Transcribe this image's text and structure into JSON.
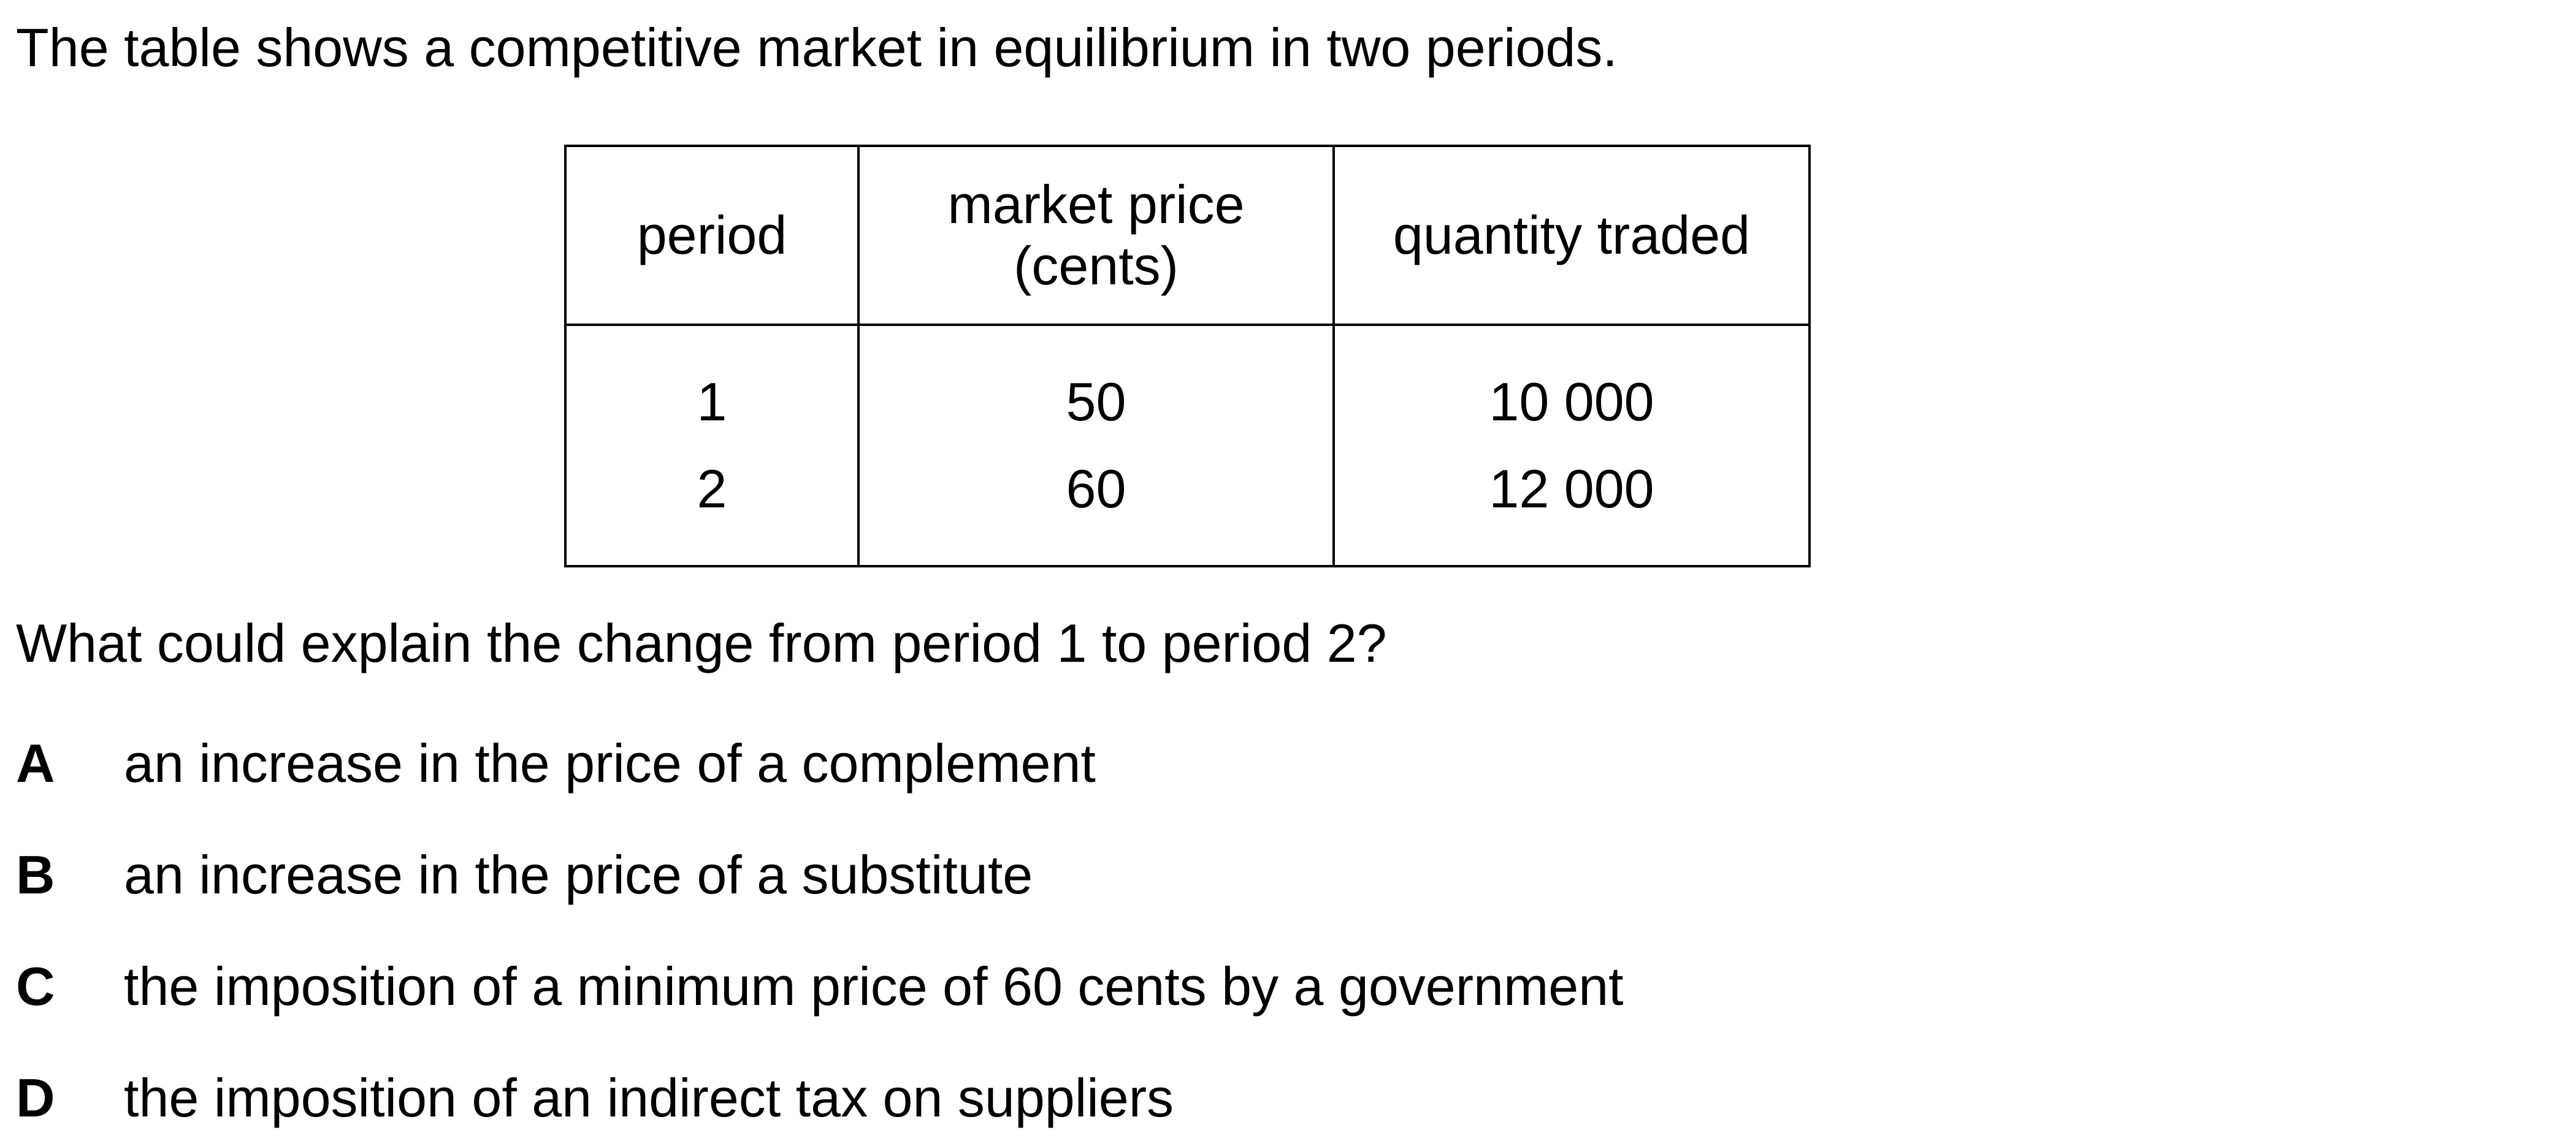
{
  "intro": "The table shows a competitive market in equilibrium in two periods.",
  "table": {
    "headers": {
      "period": "period",
      "price_line1": "market price",
      "price_line2": "(cents)",
      "quantity": "quantity traded"
    },
    "rows": [
      {
        "period": "1",
        "price": "50",
        "quantity": "10 000"
      },
      {
        "period": "2",
        "price": "60",
        "quantity": "12 000"
      }
    ]
  },
  "question": "What could explain the change from period 1 to period 2?",
  "options": [
    {
      "letter": "A",
      "text": "an increase in the price of a complement"
    },
    {
      "letter": "B",
      "text": "an increase in the price of a substitute"
    },
    {
      "letter": "C",
      "text": "the imposition of a minimum price of 60 cents by a government"
    },
    {
      "letter": "D",
      "text": "the imposition of an indirect tax on suppliers"
    }
  ]
}
